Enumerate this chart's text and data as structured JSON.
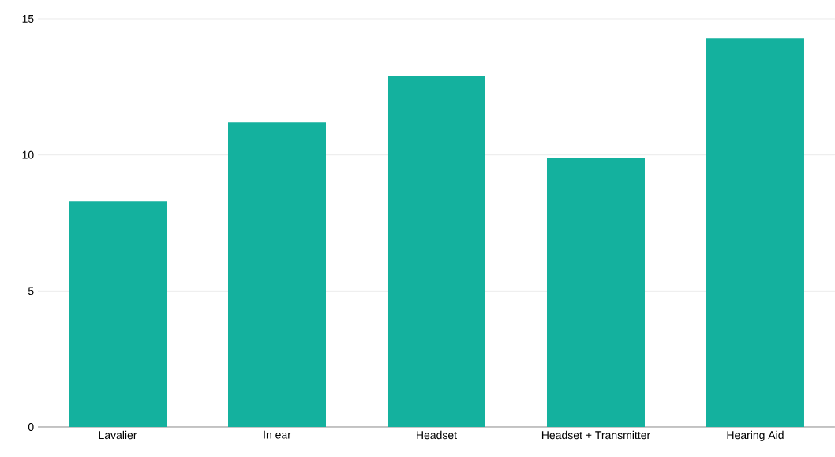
{
  "chart_data": {
    "type": "bar",
    "categories": [
      "Lavalier",
      "In ear",
      "Headset",
      "Headset + Transmitter",
      "Hearing Aid"
    ],
    "values": [
      8.3,
      11.2,
      12.9,
      9.9,
      14.3
    ],
    "color": "#14b19e",
    "ylim": [
      0,
      15
    ],
    "yticks": [
      0,
      5,
      10,
      15
    ],
    "grid": "y"
  }
}
